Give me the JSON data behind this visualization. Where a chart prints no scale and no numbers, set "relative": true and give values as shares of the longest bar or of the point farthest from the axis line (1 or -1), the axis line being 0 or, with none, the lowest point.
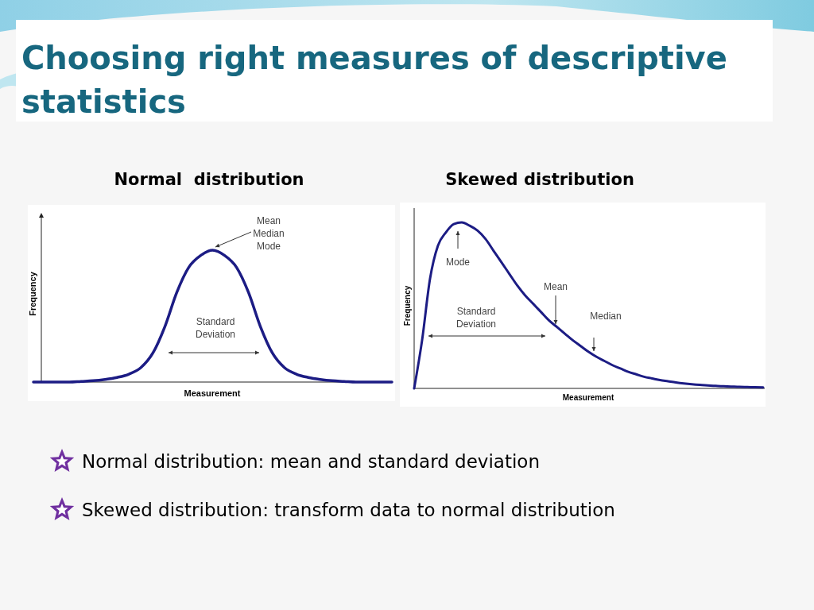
{
  "chart_data": [
    {
      "type": "other",
      "title": "Choosing right measures of descriptive statistics"
    },
    {
      "type": "line",
      "title": "Normal  distribution",
      "xlabel": "Measurement",
      "ylabel": "Frequency",
      "relative": true,
      "color": "#1c1c84",
      "categories": [
        null,
        null,
        null,
        null,
        null,
        null,
        null,
        null,
        null,
        null,
        null,
        null,
        null,
        null,
        null,
        null,
        null,
        null,
        null,
        null,
        null,
        null,
        null,
        null,
        null,
        null,
        null,
        null,
        null,
        null,
        null
      ],
      "values": [
        0,
        0,
        0,
        0,
        0.005,
        0.01,
        0.02,
        0.035,
        0.06,
        0.11,
        0.22,
        0.42,
        0.68,
        0.87,
        0.96,
        1,
        0.96,
        0.87,
        0.68,
        0.42,
        0.22,
        0.11,
        0.06,
        0.035,
        0.02,
        0.01,
        0.005,
        0,
        0,
        0,
        0
      ],
      "annotations": [
        "Mean\nMedian\nMode",
        "Standard\nDeviation"
      ]
    },
    {
      "type": "line",
      "title": "Skewed distribution",
      "xlabel": "Measurement",
      "ylabel": "Frequency",
      "relative": true,
      "color": "#1c1c84",
      "categories": [
        null,
        null,
        null,
        null,
        null,
        null,
        null,
        null,
        null,
        null,
        null,
        null,
        null,
        null,
        null,
        null,
        null,
        null,
        null,
        null,
        null,
        null,
        null,
        null,
        null,
        null,
        null,
        null,
        null,
        null,
        null,
        null,
        null,
        null,
        null,
        null,
        null,
        null,
        null,
        null,
        null,
        null,
        null,
        null,
        null
      ],
      "values": [
        0,
        0.29,
        0.66,
        0.86,
        0.94,
        0.99,
        1,
        0.98,
        0.95,
        0.9,
        0.83,
        0.76,
        0.69,
        0.62,
        0.56,
        0.51,
        0.46,
        0.41,
        0.37,
        0.33,
        0.29,
        0.255,
        0.22,
        0.19,
        0.165,
        0.14,
        0.12,
        0.1,
        0.085,
        0.07,
        0.06,
        0.05,
        0.043,
        0.036,
        0.03,
        0.025,
        0.021,
        0.018,
        0.015,
        0.013,
        0.011,
        0.009,
        0.008,
        0.007,
        0.006
      ],
      "annotations": [
        "Mode",
        "Mean",
        "Standard\nDeviation",
        "Median"
      ]
    },
    {
      "type": "other",
      "annotations": [
        "Normal distribution: mean and standard deviation",
        "Skewed distribution: transform data to normal distribution"
      ]
    }
  ]
}
